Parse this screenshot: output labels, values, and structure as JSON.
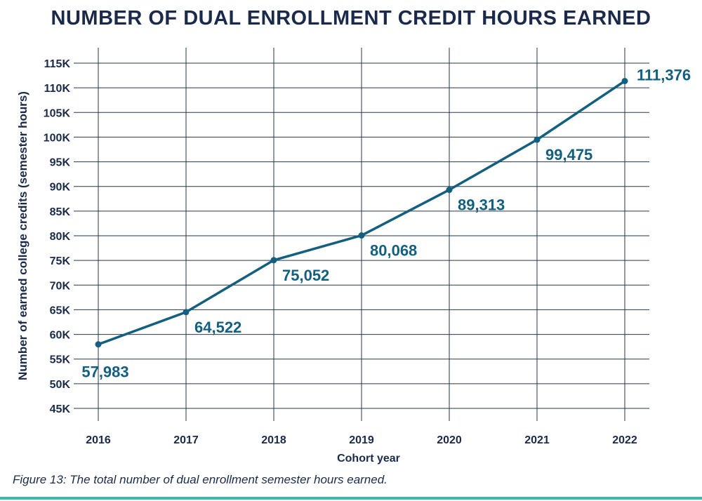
{
  "colors": {
    "title": "#1b2a4a",
    "line": "#135f80",
    "label": "#135f80",
    "grid": "#2a3548",
    "axis_text": "#1b2a4a",
    "caption": "#1b2a4a",
    "rule": "#3fb8a8"
  },
  "caption": "Figure 13: The total number of dual enrollment semester hours earned.",
  "chart_data": {
    "type": "line",
    "title": "NUMBER OF DUAL ENROLLMENT CREDIT HOURS EARNED",
    "xlabel": "Cohort year",
    "ylabel": "Number of earned college credits (semester hours)",
    "categories": [
      "2016",
      "2017",
      "2018",
      "2019",
      "2020",
      "2021",
      "2022"
    ],
    "series": [
      {
        "values": [
          57983,
          64522,
          75052,
          80068,
          89313,
          99475,
          111376
        ],
        "labels": [
          "57,983",
          "64,522",
          "75,052",
          "80,068",
          "89,313",
          "99,475",
          "111,376"
        ]
      }
    ],
    "ylim": [
      45000,
      115000
    ],
    "yticks": [
      45000,
      50000,
      55000,
      60000,
      65000,
      70000,
      75000,
      80000,
      85000,
      90000,
      95000,
      100000,
      105000,
      110000,
      115000
    ],
    "ytick_labels": [
      "45K",
      "50K",
      "55K",
      "60K",
      "65K",
      "70K",
      "75K",
      "80K",
      "85K",
      "90K",
      "95K",
      "100K",
      "105K",
      "110K",
      "115K"
    ],
    "grid": true,
    "legend": "none"
  }
}
